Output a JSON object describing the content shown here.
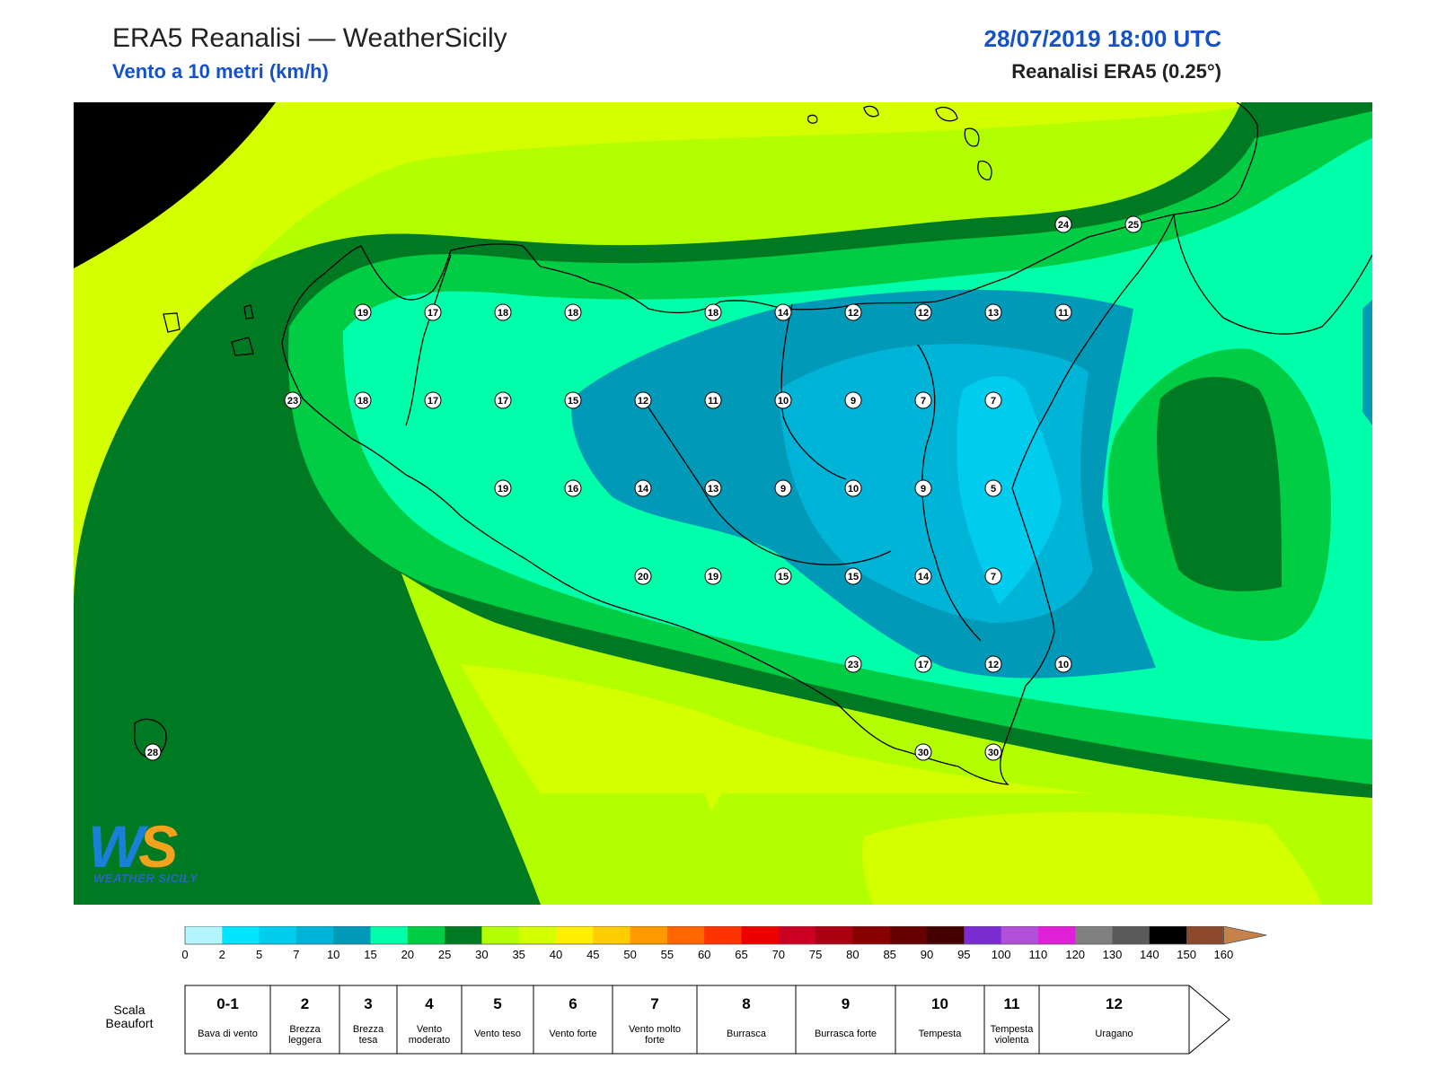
{
  "header": {
    "title_left": "ERA5 Reanalisi — WeatherSicily",
    "subtitle_left": "Vento a 10 metri (km/h)",
    "title_right": "28/07/2019 18:00 UTC",
    "subtitle_right": "Reanalisi ERA5 (0.25°)"
  },
  "logo": {
    "letters": "WS",
    "name": "WEATHER SICILY"
  },
  "map": {
    "colors": {
      "0": "#b3f5ff",
      "2": "#00e5ff",
      "5": "#00ccee",
      "7": "#00b4d8",
      "10": "#0099b8",
      "15": "#00ffaa",
      "20": "#00cc44",
      "25": "#007a22",
      "30": "#b3ff00",
      "35": "#d4ff00",
      "coast": "#000000",
      "label_fill": "#ffffff"
    },
    "stations": [
      {
        "v": 19,
        "lon": 12.75,
        "lat": 38.0
      },
      {
        "v": 17,
        "lon": 13.0,
        "lat": 38.0
      },
      {
        "v": 18,
        "lon": 13.25,
        "lat": 38.0
      },
      {
        "v": 18,
        "lon": 13.5,
        "lat": 38.0
      },
      {
        "v": 18,
        "lon": 14.0,
        "lat": 38.0
      },
      {
        "v": 14,
        "lon": 14.25,
        "lat": 38.0
      },
      {
        "v": 12,
        "lon": 14.5,
        "lat": 38.0
      },
      {
        "v": 12,
        "lon": 14.75,
        "lat": 38.0
      },
      {
        "v": 13,
        "lon": 15.0,
        "lat": 38.0
      },
      {
        "v": 11,
        "lon": 15.25,
        "lat": 38.0
      },
      {
        "v": 23,
        "lon": 12.5,
        "lat": 37.75
      },
      {
        "v": 18,
        "lon": 12.75,
        "lat": 37.75
      },
      {
        "v": 17,
        "lon": 13.0,
        "lat": 37.75
      },
      {
        "v": 17,
        "lon": 13.25,
        "lat": 37.75
      },
      {
        "v": 15,
        "lon": 13.5,
        "lat": 37.75
      },
      {
        "v": 12,
        "lon": 13.75,
        "lat": 37.75
      },
      {
        "v": 11,
        "lon": 14.0,
        "lat": 37.75
      },
      {
        "v": 10,
        "lon": 14.25,
        "lat": 37.75
      },
      {
        "v": 9,
        "lon": 14.5,
        "lat": 37.75
      },
      {
        "v": 7,
        "lon": 14.75,
        "lat": 37.75
      },
      {
        "v": 7,
        "lon": 15.0,
        "lat": 37.75
      },
      {
        "v": 19,
        "lon": 13.25,
        "lat": 37.5
      },
      {
        "v": 16,
        "lon": 13.5,
        "lat": 37.5
      },
      {
        "v": 14,
        "lon": 13.75,
        "lat": 37.5
      },
      {
        "v": 13,
        "lon": 14.0,
        "lat": 37.5
      },
      {
        "v": 9,
        "lon": 14.25,
        "lat": 37.5
      },
      {
        "v": 10,
        "lon": 14.5,
        "lat": 37.5
      },
      {
        "v": 9,
        "lon": 14.75,
        "lat": 37.5
      },
      {
        "v": 5,
        "lon": 15.0,
        "lat": 37.5
      },
      {
        "v": 20,
        "lon": 13.75,
        "lat": 37.25
      },
      {
        "v": 19,
        "lon": 14.0,
        "lat": 37.25
      },
      {
        "v": 15,
        "lon": 14.25,
        "lat": 37.25
      },
      {
        "v": 15,
        "lon": 14.5,
        "lat": 37.25
      },
      {
        "v": 14,
        "lon": 14.75,
        "lat": 37.25
      },
      {
        "v": 7,
        "lon": 15.0,
        "lat": 37.25
      },
      {
        "v": 23,
        "lon": 14.5,
        "lat": 37.0
      },
      {
        "v": 17,
        "lon": 14.75,
        "lat": 37.0
      },
      {
        "v": 12,
        "lon": 15.0,
        "lat": 37.0
      },
      {
        "v": 10,
        "lon": 15.25,
        "lat": 37.0
      },
      {
        "v": 30,
        "lon": 14.75,
        "lat": 36.75
      },
      {
        "v": 30,
        "lon": 15.0,
        "lat": 36.75
      },
      {
        "v": 24,
        "lon": 15.25,
        "lat": 38.25
      },
      {
        "v": 25,
        "lon": 15.5,
        "lat": 38.25
      },
      {
        "v": 28,
        "lon": 12.0,
        "lat": 36.75
      }
    ]
  },
  "colorbar": {
    "ticks": [
      "0",
      "2",
      "5",
      "7",
      "10",
      "15",
      "20",
      "25",
      "30",
      "35",
      "40",
      "45",
      "50",
      "55",
      "60",
      "65",
      "70",
      "75",
      "80",
      "85",
      "90",
      "95",
      "100",
      "110",
      "120",
      "130",
      "140",
      "150",
      "160"
    ],
    "colors": [
      "#b3f5ff",
      "#00e5ff",
      "#00ccee",
      "#00b4d8",
      "#0099b8",
      "#00ffaa",
      "#00cc44",
      "#007a22",
      "#b3ff00",
      "#d4ff00",
      "#ffee00",
      "#ffcc00",
      "#ff9900",
      "#ff6600",
      "#ff3300",
      "#ee0000",
      "#cc0022",
      "#aa0011",
      "#880000",
      "#660000",
      "#440000",
      "#7a2bd1",
      "#b24fd8",
      "#e020d8",
      "#808080",
      "#5a5a5a",
      "#000000",
      "#8b4a2b",
      "#c6824a"
    ]
  },
  "beaufort": {
    "title": "Scala Beaufort",
    "cells": [
      {
        "num": "0-1",
        "desc": "Bava di vento"
      },
      {
        "num": "2",
        "desc": "Brezza leggera"
      },
      {
        "num": "3",
        "desc": "Brezza tesa"
      },
      {
        "num": "4",
        "desc": "Vento moderato"
      },
      {
        "num": "5",
        "desc": "Vento teso"
      },
      {
        "num": "6",
        "desc": "Vento forte"
      },
      {
        "num": "7",
        "desc": "Vento molto forte"
      },
      {
        "num": "8",
        "desc": "Burrasca"
      },
      {
        "num": "9",
        "desc": "Burrasca forte"
      },
      {
        "num": "10",
        "desc": "Tempesta"
      },
      {
        "num": "11",
        "desc": "Tempesta violenta"
      },
      {
        "num": "12",
        "desc": "Uragano"
      }
    ]
  }
}
